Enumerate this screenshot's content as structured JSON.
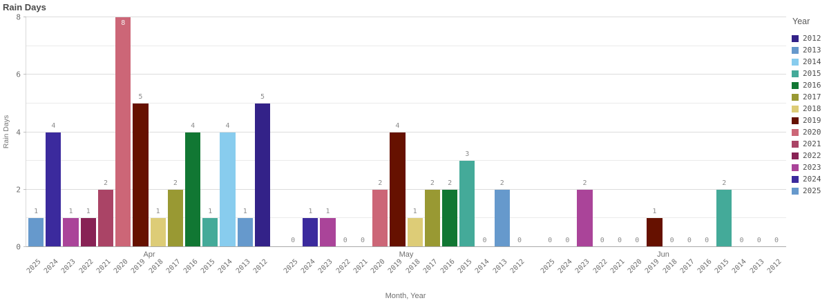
{
  "chart_data": {
    "type": "bar",
    "title": "Rain Days",
    "xlabel": "Month, Year",
    "ylabel": "Rain Days",
    "ylim": [
      0,
      8
    ],
    "yticks": [
      0,
      2,
      4,
      6,
      8
    ],
    "ygrid_interval": 1,
    "grid": true,
    "categories": [
      "Apr",
      "May",
      "Jun"
    ],
    "group_bar_order": [
      "2025",
      "2024",
      "2023",
      "2022",
      "2021",
      "2020",
      "2019",
      "2018",
      "2017",
      "2016",
      "2015",
      "2014",
      "2013",
      "2012"
    ],
    "series": [
      {
        "name": "2012",
        "color": "#332288",
        "values": [
          5,
          0,
          0
        ]
      },
      {
        "name": "2013",
        "color": "#6699CC",
        "values": [
          1,
          2,
          0
        ]
      },
      {
        "name": "2014",
        "color": "#88CCEE",
        "values": [
          4,
          0,
          0
        ]
      },
      {
        "name": "2015",
        "color": "#44AA99",
        "values": [
          1,
          3,
          2
        ]
      },
      {
        "name": "2016",
        "color": "#117733",
        "values": [
          4,
          2,
          0
        ]
      },
      {
        "name": "2017",
        "color": "#999933",
        "values": [
          2,
          2,
          0
        ]
      },
      {
        "name": "2018",
        "color": "#DDCC77",
        "values": [
          1,
          1,
          0
        ]
      },
      {
        "name": "2019",
        "color": "#661100",
        "values": [
          5,
          4,
          1
        ]
      },
      {
        "name": "2020",
        "color": "#CC6677",
        "values": [
          8,
          2,
          0
        ]
      },
      {
        "name": "2021",
        "color": "#AA4466",
        "values": [
          2,
          0,
          0
        ]
      },
      {
        "name": "2022",
        "color": "#882255",
        "values": [
          1,
          0,
          0
        ]
      },
      {
        "name": "2023",
        "color": "#AA4499",
        "values": [
          1,
          1,
          2
        ]
      },
      {
        "name": "2024",
        "color": "#3B2A9D",
        "values": [
          4,
          1,
          0
        ]
      },
      {
        "name": "2025",
        "color": "#6699CC",
        "values": [
          1,
          0,
          0
        ]
      }
    ],
    "legend": {
      "title": "Year",
      "position": "right"
    },
    "value_labels": "shown above bars; max value label drawn in white inside bar"
  }
}
